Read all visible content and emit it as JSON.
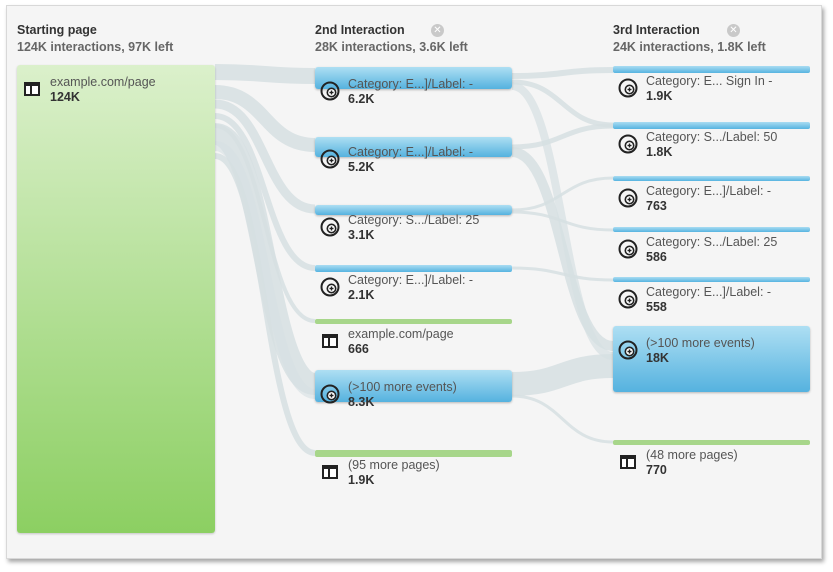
{
  "columns": [
    {
      "title": "Starting page",
      "subtitle": "124K interactions, 97K left",
      "closable": false
    },
    {
      "title": "2nd Interaction",
      "subtitle": "28K interactions, 3.6K left",
      "closable": true,
      "close_icon": "close-circle-icon"
    },
    {
      "title": "3rd Interaction",
      "subtitle": "24K interactions, 1.8K left",
      "closable": true,
      "close_icon": "close-circle-icon"
    }
  ],
  "col1": [
    {
      "name": "example.com/page",
      "count": "124K",
      "kind": "page",
      "icon": "page-layout-icon"
    }
  ],
  "col2": [
    {
      "name": "Category: E...]/Label: -",
      "count": "6.2K",
      "kind": "event",
      "icon": "event-target-icon"
    },
    {
      "name": "Category: E...]/Label: -",
      "count": "5.2K",
      "kind": "event",
      "icon": "event-target-icon"
    },
    {
      "name": "Category: S.../Label: 25",
      "count": "3.1K",
      "kind": "event",
      "icon": "event-target-icon"
    },
    {
      "name": "Category: E...]/Label: -",
      "count": "2.1K",
      "kind": "event",
      "icon": "event-target-icon"
    },
    {
      "name": "example.com/page",
      "count": "666",
      "kind": "page",
      "icon": "page-layout-icon"
    },
    {
      "name": "(>100 more events)",
      "count": "8.3K",
      "kind": "event",
      "icon": "event-target-icon"
    },
    {
      "name": "(95 more pages)",
      "count": "1.9K",
      "kind": "page",
      "icon": "page-layout-icon"
    }
  ],
  "col3": [
    {
      "name": "Category: E... Sign In -",
      "count": "1.9K",
      "kind": "event",
      "icon": "event-target-icon"
    },
    {
      "name": "Category: S.../Label: 50",
      "count": "1.8K",
      "kind": "event",
      "icon": "event-target-icon"
    },
    {
      "name": "Category: E...]/Label: -",
      "count": "763",
      "kind": "event",
      "icon": "event-target-icon"
    },
    {
      "name": "Category: S.../Label: 25",
      "count": "586",
      "kind": "event",
      "icon": "event-target-icon"
    },
    {
      "name": "Category: E...]/Label: -",
      "count": "558",
      "kind": "event",
      "icon": "event-target-icon"
    },
    {
      "name": "(>100 more events)",
      "count": "18K",
      "kind": "event",
      "icon": "event-target-icon"
    },
    {
      "name": "(48 more pages)",
      "count": "770",
      "kind": "page",
      "icon": "page-layout-icon"
    }
  ],
  "colors": {
    "event": "#5ab4e0",
    "page": "#8ccf62",
    "flow": "#d6dfe2",
    "panel": "#f5f5f5"
  }
}
